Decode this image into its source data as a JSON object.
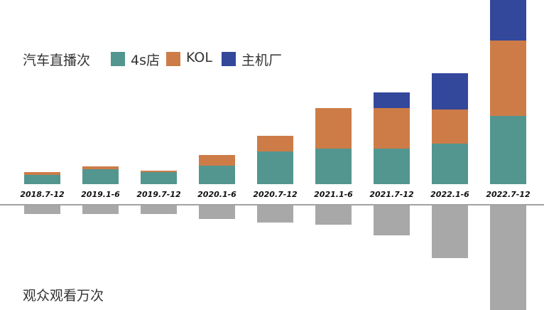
{
  "chart_data": {
    "type": "bar",
    "stacked": true,
    "title": "",
    "top_label": "汽车直播次",
    "bottom_label": "观众观看万次",
    "categories": [
      "2018.7-12",
      "2019.1-6",
      "2019.7-12",
      "2020.1-6",
      "2020.7-12",
      "2021.1-6",
      "2021.7-12",
      "2022.1-6",
      "2022.7-12"
    ],
    "series": [
      {
        "name": "4s店",
        "color": "#52968f",
        "values": [
          13,
          21,
          17,
          26,
          46,
          50,
          50,
          57,
          96
        ]
      },
      {
        "name": "KOL",
        "color": "#cd7c48",
        "values": [
          4,
          4,
          2,
          15,
          22,
          57,
          57,
          48,
          106
        ]
      },
      {
        "name": "主机厂",
        "color": "#33479b",
        "values": [
          0,
          0,
          0,
          0,
          0,
          0,
          22,
          51,
          60
        ]
      }
    ],
    "viewers": {
      "color": "#a8a8a8",
      "values": [
        12,
        12,
        12,
        19,
        24,
        27,
        42,
        74,
        148
      ]
    },
    "grid": false,
    "legend_position": "top-left"
  }
}
